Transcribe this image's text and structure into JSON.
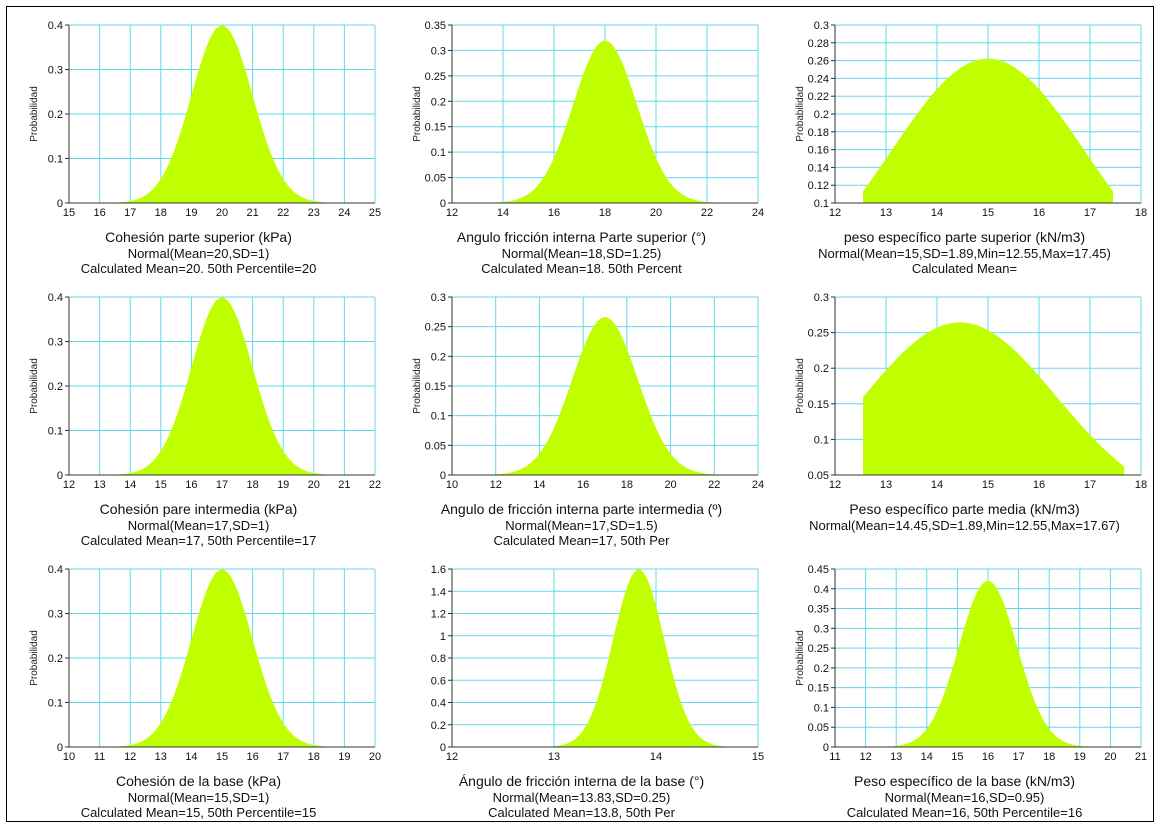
{
  "chart_data": [
    {
      "type": "area",
      "title": "Cohesión parte superior (kPa)",
      "subtitle": [
        "Normal(Mean=20,SD=1)",
        "Calculated Mean=20. 50th Percentile=20"
      ],
      "ylabel": "Probabilidad",
      "xlim": [
        15,
        25
      ],
      "ylim": [
        0,
        0.4
      ],
      "xticks": [
        "15",
        "16",
        "17",
        "18",
        "19",
        "20",
        "21",
        "22",
        "23",
        "24",
        "25"
      ],
      "yticks": [
        "0",
        "0.1",
        "0.2",
        "0.3",
        "0.4"
      ],
      "distribution": {
        "name": "Normal",
        "mean": 20,
        "sd": 1
      },
      "color": "#bfff00",
      "gridcolor": "#66d9e8"
    },
    {
      "type": "area",
      "title": "Angulo fricción interna Parte superior (°)",
      "subtitle": [
        "Normal(Mean=18,SD=1.25)",
        "Calculated Mean=18. 50th Percent"
      ],
      "ylabel": "Probabilidad",
      "xlim": [
        12,
        24
      ],
      "ylim": [
        0,
        0.35
      ],
      "xticks": [
        "12",
        "14",
        "16",
        "18",
        "20",
        "22",
        "24"
      ],
      "yticks": [
        "0",
        "0.05",
        "0.1",
        "0.15",
        "0.2",
        "0.25",
        "0.3",
        "0.35"
      ],
      "distribution": {
        "name": "Normal",
        "mean": 18,
        "sd": 1.25
      },
      "color": "#bfff00",
      "gridcolor": "#66d9e8"
    },
    {
      "type": "area",
      "title": "peso específico parte superior (kN/m3)",
      "subtitle": [
        "Normal(Mean=15,SD=1.89,Min=12.55,Max=17.45)",
        "Calculated Mean="
      ],
      "ylabel": "Probabilidad",
      "xlim": [
        12,
        18
      ],
      "ylim": [
        0.1,
        0.3
      ],
      "xticks": [
        "12",
        "13",
        "14",
        "15",
        "16",
        "17",
        "18"
      ],
      "yticks": [
        "0.1",
        "0.12",
        "0.14",
        "0.16",
        "0.18",
        "0.2",
        "0.22",
        "0.24",
        "0.26",
        "0.28",
        "0.3"
      ],
      "distribution": {
        "name": "Normal",
        "mean": 15,
        "sd": 1.89,
        "min": 12.55,
        "max": 17.45
      },
      "color": "#bfff00",
      "gridcolor": "#66d9e8"
    },
    {
      "type": "area",
      "title": "Cohesión pare intermedia (kPa)",
      "subtitle": [
        "Normal(Mean=17,SD=1)",
        "Calculated Mean=17, 50th Percentile=17"
      ],
      "ylabel": "Probabilidad",
      "xlim": [
        12,
        22
      ],
      "ylim": [
        0,
        0.4
      ],
      "xticks": [
        "12",
        "13",
        "14",
        "15",
        "16",
        "17",
        "18",
        "19",
        "20",
        "21",
        "22"
      ],
      "yticks": [
        "0",
        "0.1",
        "0.2",
        "0.3",
        "0.4"
      ],
      "distribution": {
        "name": "Normal",
        "mean": 17,
        "sd": 1
      },
      "color": "#bfff00",
      "gridcolor": "#66d9e8"
    },
    {
      "type": "area",
      "title": "Angulo de fricción interna parte intermedia (º)",
      "subtitle": [
        "Normal(Mean=17,SD=1.5)",
        "Calculated Mean=17, 50th Per"
      ],
      "ylabel": "Probabilidad",
      "xlim": [
        10,
        24
      ],
      "ylim": [
        0,
        0.3
      ],
      "xticks": [
        "10",
        "12",
        "14",
        "16",
        "18",
        "20",
        "22",
        "24"
      ],
      "yticks": [
        "0",
        "0.05",
        "0.1",
        "0.15",
        "0.2",
        "0.25",
        "0.3"
      ],
      "distribution": {
        "name": "Normal",
        "mean": 17,
        "sd": 1.5
      },
      "color": "#bfff00",
      "gridcolor": "#66d9e8"
    },
    {
      "type": "area",
      "title": "Peso específico parte media (kN/m3)",
      "subtitle": [
        "Normal(Mean=14.45,SD=1.89,Min=12.55,Max=17.67)"
      ],
      "ylabel": "Probabilidad",
      "xlim": [
        12,
        18
      ],
      "ylim": [
        0.05,
        0.3
      ],
      "xticks": [
        "12",
        "13",
        "14",
        "15",
        "16",
        "17",
        "18"
      ],
      "yticks": [
        "0.05",
        "0.1",
        "0.15",
        "0.2",
        "0.25",
        "0.3"
      ],
      "distribution": {
        "name": "Normal",
        "mean": 14.45,
        "sd": 1.89,
        "min": 12.55,
        "max": 17.67
      },
      "color": "#bfff00",
      "gridcolor": "#66d9e8"
    },
    {
      "type": "area",
      "title": "Cohesión de la base (kPa)",
      "subtitle": [
        "Normal(Mean=15,SD=1)",
        "Calculated Mean=15, 50th Percentile=15"
      ],
      "ylabel": "Probabilidad",
      "xlim": [
        10,
        20
      ],
      "ylim": [
        0,
        0.4
      ],
      "xticks": [
        "10",
        "11",
        "12",
        "13",
        "14",
        "15",
        "16",
        "17",
        "18",
        "19",
        "20"
      ],
      "yticks": [
        "0",
        "0.1",
        "0.2",
        "0.3",
        "0.4"
      ],
      "distribution": {
        "name": "Normal",
        "mean": 15,
        "sd": 1
      },
      "color": "#bfff00",
      "gridcolor": "#66d9e8"
    },
    {
      "type": "area",
      "title": "Ángulo de fricción interna de la base (°)",
      "subtitle": [
        "Normal(Mean=13.83,SD=0.25)",
        "Calculated Mean=13.8, 50th Per"
      ],
      "ylabel": "",
      "xlim": [
        12,
        15
      ],
      "ylim": [
        0,
        1.6
      ],
      "xticks": [
        "12",
        "13",
        "14",
        "15"
      ],
      "yticks": [
        "0",
        "0.2",
        "0.4",
        "0.6",
        "0.8",
        "1",
        "1.2",
        "1.4",
        "1.6"
      ],
      "distribution": {
        "name": "Normal",
        "mean": 13.83,
        "sd": 0.25
      },
      "color": "#bfff00",
      "gridcolor": "#66d9e8"
    },
    {
      "type": "area",
      "title": "Peso específico de la base (kN/m3)",
      "subtitle": [
        "Normal(Mean=16,SD=0.95)",
        "Calculated Mean=16, 50th Percentile=16"
      ],
      "ylabel": "Probabilidad",
      "xlim": [
        11,
        21
      ],
      "ylim": [
        0,
        0.45
      ],
      "xticks": [
        "11",
        "12",
        "13",
        "14",
        "15",
        "16",
        "17",
        "18",
        "19",
        "20",
        "21"
      ],
      "yticks": [
        "0",
        "0.05",
        "0.1",
        "0.15",
        "0.2",
        "0.25",
        "0.3",
        "0.35",
        "0.4",
        "0.45"
      ],
      "distribution": {
        "name": "Normal",
        "mean": 16,
        "sd": 0.95
      },
      "color": "#bfff00",
      "gridcolor": "#66d9e8"
    }
  ]
}
